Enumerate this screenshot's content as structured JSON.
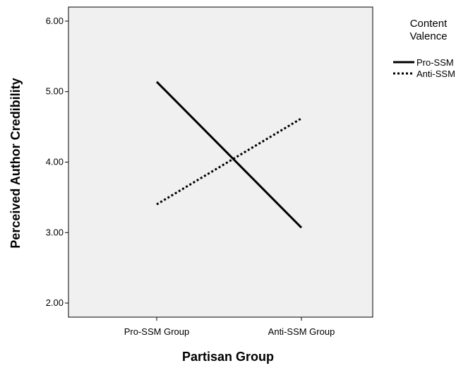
{
  "chart_data": {
    "type": "line",
    "title": "",
    "xlabel": "Partisan Group",
    "ylabel": "Perceived Author Credibility",
    "categories": [
      "Pro-SSM Group",
      "Anti-SSM Group"
    ],
    "ylim": [
      1.8,
      6.2
    ],
    "yticks": [
      "2.00",
      "3.00",
      "4.00",
      "5.00",
      "6.00"
    ],
    "grid": false,
    "legend": {
      "title_lines": [
        "Content",
        "Valence"
      ],
      "placement": "right"
    },
    "series": [
      {
        "name": "Pro-SSM",
        "values": [
          5.14,
          3.07
        ],
        "style": "solid",
        "color": "#000000"
      },
      {
        "name": "Anti-SSM",
        "values": [
          3.4,
          4.62
        ],
        "style": "dotted",
        "color": "#000000"
      }
    ],
    "plot_background": "#f0f0f0"
  }
}
